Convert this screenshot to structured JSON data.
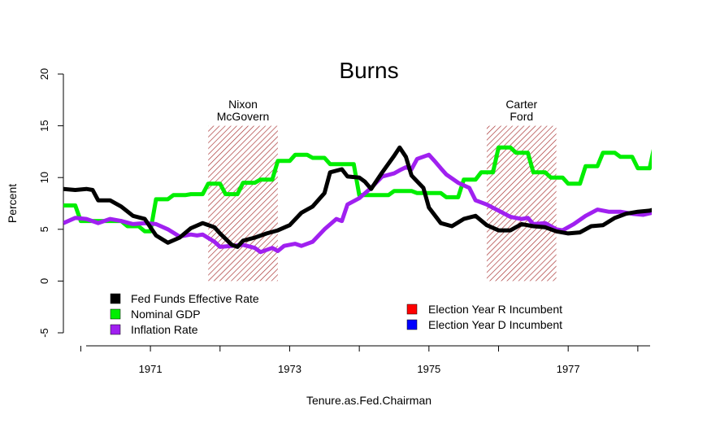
{
  "chart_data": {
    "type": "line",
    "title": "Burns",
    "xlabel": "Tenure.as.Fed.Chairman",
    "ylabel": "Percent",
    "xlim": [
      1969.75,
      1978.2
    ],
    "ylim": [
      -5,
      20
    ],
    "x_ticks": [
      {
        "value": 1971,
        "label": "1971"
      },
      {
        "value": 1973,
        "label": "1973"
      },
      {
        "value": 1975,
        "label": "1975"
      },
      {
        "value": 1977,
        "label": "1977"
      }
    ],
    "y_ticks": [
      {
        "value": -5,
        "label": "-5"
      },
      {
        "value": 0,
        "label": "0"
      },
      {
        "value": 5,
        "label": "5"
      },
      {
        "value": 10,
        "label": "10"
      },
      {
        "value": 15,
        "label": "15"
      },
      {
        "value": 20,
        "label": "20"
      }
    ],
    "election_periods": [
      {
        "x0": 1971.83,
        "x1": 1972.83,
        "y0": 0,
        "y1": 15,
        "type": "R Incumbent",
        "color": "#a52a2a",
        "line1": "Nixon",
        "line2": "McGovern"
      },
      {
        "x0": 1975.83,
        "x1": 1976.83,
        "y0": 0,
        "y1": 15,
        "type": "R Incumbent",
        "color": "#a52a2a",
        "line1": "Carter",
        "line2": "Ford"
      }
    ],
    "series": [
      {
        "name": "Nominal GDP",
        "color": "#00ee00",
        "points": [
          [
            1969.75,
            7.3
          ],
          [
            1969.92,
            7.3
          ],
          [
            1970.0,
            5.8
          ],
          [
            1970.58,
            5.8
          ],
          [
            1970.67,
            5.3
          ],
          [
            1970.83,
            5.3
          ],
          [
            1970.92,
            4.8
          ],
          [
            1971.0,
            4.8
          ],
          [
            1971.08,
            7.9
          ],
          [
            1971.25,
            7.9
          ],
          [
            1971.33,
            8.3
          ],
          [
            1971.5,
            8.3
          ],
          [
            1971.58,
            8.4
          ],
          [
            1971.75,
            8.4
          ],
          [
            1971.83,
            9.4
          ],
          [
            1972.0,
            9.4
          ],
          [
            1972.08,
            8.4
          ],
          [
            1972.25,
            8.4
          ],
          [
            1972.33,
            9.5
          ],
          [
            1972.5,
            9.5
          ],
          [
            1972.58,
            9.8
          ],
          [
            1972.75,
            9.8
          ],
          [
            1972.83,
            11.6
          ],
          [
            1973.0,
            11.6
          ],
          [
            1973.08,
            12.2
          ],
          [
            1973.25,
            12.2
          ],
          [
            1973.33,
            11.9
          ],
          [
            1973.5,
            11.9
          ],
          [
            1973.58,
            11.3
          ],
          [
            1973.92,
            11.3
          ],
          [
            1974.0,
            8.3
          ],
          [
            1974.42,
            8.3
          ],
          [
            1974.5,
            8.7
          ],
          [
            1974.75,
            8.7
          ],
          [
            1974.83,
            8.5
          ],
          [
            1975.17,
            8.5
          ],
          [
            1975.25,
            8.1
          ],
          [
            1975.42,
            8.1
          ],
          [
            1975.5,
            9.8
          ],
          [
            1975.67,
            9.8
          ],
          [
            1975.75,
            10.5
          ],
          [
            1975.92,
            10.5
          ],
          [
            1976.0,
            12.9
          ],
          [
            1976.17,
            12.9
          ],
          [
            1976.25,
            12.4
          ],
          [
            1976.42,
            12.4
          ],
          [
            1976.5,
            10.5
          ],
          [
            1976.67,
            10.5
          ],
          [
            1976.75,
            10.0
          ],
          [
            1976.92,
            10.0
          ],
          [
            1977.0,
            9.4
          ],
          [
            1977.17,
            9.4
          ],
          [
            1977.25,
            11.1
          ],
          [
            1977.42,
            11.1
          ],
          [
            1977.5,
            12.4
          ],
          [
            1977.67,
            12.4
          ],
          [
            1977.75,
            12.0
          ],
          [
            1977.92,
            12.0
          ],
          [
            1978.0,
            10.9
          ],
          [
            1978.17,
            10.9
          ],
          [
            1978.25,
            13.4
          ],
          [
            1978.33,
            13.4
          ]
        ]
      },
      {
        "name": "Inflation Rate",
        "color": "#a020f0",
        "points": [
          [
            1969.75,
            5.6
          ],
          [
            1969.92,
            6.1
          ],
          [
            1970.08,
            6.0
          ],
          [
            1970.25,
            5.6
          ],
          [
            1970.42,
            6.0
          ],
          [
            1970.58,
            5.8
          ],
          [
            1970.75,
            5.5
          ],
          [
            1970.92,
            5.6
          ],
          [
            1971.08,
            5.5
          ],
          [
            1971.25,
            5.0
          ],
          [
            1971.42,
            4.3
          ],
          [
            1971.58,
            4.5
          ],
          [
            1971.67,
            4.4
          ],
          [
            1971.75,
            4.5
          ],
          [
            1971.92,
            3.8
          ],
          [
            1972.0,
            3.3
          ],
          [
            1972.17,
            3.4
          ],
          [
            1972.33,
            3.5
          ],
          [
            1972.5,
            3.2
          ],
          [
            1972.58,
            2.8
          ],
          [
            1972.75,
            3.2
          ],
          [
            1972.83,
            2.9
          ],
          [
            1972.92,
            3.4
          ],
          [
            1973.08,
            3.6
          ],
          [
            1973.17,
            3.4
          ],
          [
            1973.33,
            3.8
          ],
          [
            1973.5,
            5.0
          ],
          [
            1973.67,
            6.0
          ],
          [
            1973.75,
            5.8
          ],
          [
            1973.83,
            7.4
          ],
          [
            1974.0,
            8.0
          ],
          [
            1974.17,
            9.0
          ],
          [
            1974.33,
            10.1
          ],
          [
            1974.5,
            10.4
          ],
          [
            1974.58,
            10.7
          ],
          [
            1974.67,
            11.0
          ],
          [
            1974.75,
            10.8
          ],
          [
            1974.83,
            11.8
          ],
          [
            1975.0,
            12.2
          ],
          [
            1975.08,
            11.6
          ],
          [
            1975.17,
            10.9
          ],
          [
            1975.25,
            10.3
          ],
          [
            1975.42,
            9.5
          ],
          [
            1975.58,
            9.0
          ],
          [
            1975.67,
            7.8
          ],
          [
            1975.83,
            7.4
          ],
          [
            1976.0,
            6.8
          ],
          [
            1976.17,
            6.2
          ],
          [
            1976.33,
            6.0
          ],
          [
            1976.42,
            6.1
          ],
          [
            1976.5,
            5.5
          ],
          [
            1976.67,
            5.6
          ],
          [
            1976.83,
            5.0
          ],
          [
            1976.92,
            4.9
          ],
          [
            1977.08,
            5.5
          ],
          [
            1977.25,
            6.3
          ],
          [
            1977.42,
            6.9
          ],
          [
            1977.58,
            6.7
          ],
          [
            1977.75,
            6.7
          ],
          [
            1977.92,
            6.5
          ],
          [
            1978.08,
            6.4
          ],
          [
            1978.33,
            6.8
          ]
        ]
      },
      {
        "name": "Fed Funds Effective Rate",
        "color": "#000000",
        "points": [
          [
            1969.75,
            8.9
          ],
          [
            1969.92,
            8.8
          ],
          [
            1970.08,
            8.9
          ],
          [
            1970.17,
            8.8
          ],
          [
            1970.25,
            7.8
          ],
          [
            1970.42,
            7.8
          ],
          [
            1970.58,
            7.2
          ],
          [
            1970.75,
            6.3
          ],
          [
            1970.92,
            6.0
          ],
          [
            1971.08,
            4.4
          ],
          [
            1971.25,
            3.7
          ],
          [
            1971.42,
            4.2
          ],
          [
            1971.58,
            5.1
          ],
          [
            1971.75,
            5.6
          ],
          [
            1971.92,
            5.2
          ],
          [
            1972.0,
            4.6
          ],
          [
            1972.17,
            3.5
          ],
          [
            1972.25,
            3.3
          ],
          [
            1972.33,
            3.9
          ],
          [
            1972.5,
            4.2
          ],
          [
            1972.67,
            4.6
          ],
          [
            1972.83,
            4.9
          ],
          [
            1973.0,
            5.4
          ],
          [
            1973.17,
            6.6
          ],
          [
            1973.33,
            7.2
          ],
          [
            1973.5,
            8.5
          ],
          [
            1973.58,
            10.5
          ],
          [
            1973.75,
            10.8
          ],
          [
            1973.83,
            10.1
          ],
          [
            1974.0,
            10.0
          ],
          [
            1974.08,
            9.6
          ],
          [
            1974.17,
            8.9
          ],
          [
            1974.33,
            10.5
          ],
          [
            1974.5,
            12.1
          ],
          [
            1974.58,
            12.9
          ],
          [
            1974.67,
            12.0
          ],
          [
            1974.75,
            10.2
          ],
          [
            1974.92,
            9.0
          ],
          [
            1975.0,
            7.1
          ],
          [
            1975.17,
            5.6
          ],
          [
            1975.33,
            5.3
          ],
          [
            1975.5,
            6.0
          ],
          [
            1975.67,
            6.3
          ],
          [
            1975.83,
            5.4
          ],
          [
            1976.0,
            4.9
          ],
          [
            1976.17,
            4.9
          ],
          [
            1976.33,
            5.5
          ],
          [
            1976.5,
            5.3
          ],
          [
            1976.67,
            5.2
          ],
          [
            1976.83,
            4.8
          ],
          [
            1977.0,
            4.6
          ],
          [
            1977.17,
            4.7
          ],
          [
            1977.33,
            5.3
          ],
          [
            1977.5,
            5.4
          ],
          [
            1977.67,
            6.1
          ],
          [
            1977.83,
            6.5
          ],
          [
            1978.0,
            6.7
          ],
          [
            1978.17,
            6.8
          ],
          [
            1978.33,
            7.1
          ]
        ]
      }
    ],
    "legend_left": [
      {
        "label": "Fed Funds Effective Rate",
        "color": "#000000"
      },
      {
        "label": "Nominal GDP",
        "color": "#00ee00"
      },
      {
        "label": "Inflation Rate",
        "color": "#a020f0"
      }
    ],
    "legend_right": [
      {
        "label": "Election Year R Incumbent",
        "color": "#ff0000"
      },
      {
        "label": "Election Year D Incumbent",
        "color": "#0000ff"
      }
    ],
    "grid": false
  }
}
